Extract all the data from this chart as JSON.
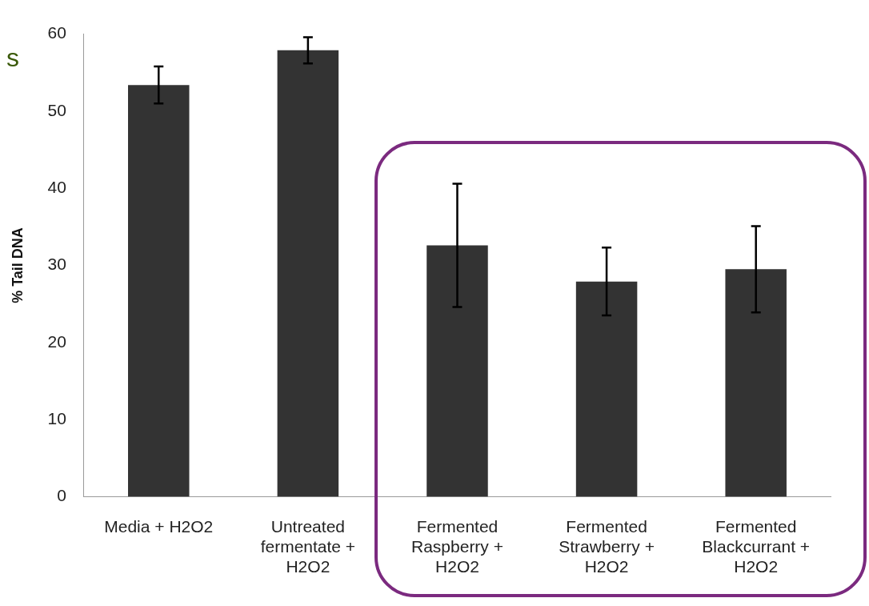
{
  "chart_data": {
    "type": "bar",
    "ylabel": "% Tail DNA",
    "categories": [
      "Media + H2O2",
      "Untreated fermentate + H2O2",
      "Fermented Raspberry + H2O2",
      "Fermented Strawberry + H2O2",
      "Fermented Blackcurrant + H2O2"
    ],
    "values": [
      53.4,
      57.9,
      32.6,
      27.9,
      29.5
    ],
    "errors": [
      2.4,
      1.7,
      8,
      4.4,
      5.6
    ],
    "color": "#333333",
    "ylim": [
      0,
      60
    ],
    "yticks": [
      0,
      10,
      20,
      30,
      40,
      50,
      60
    ],
    "grid": false,
    "legend": false,
    "annotations": [
      "s"
    ]
  }
}
